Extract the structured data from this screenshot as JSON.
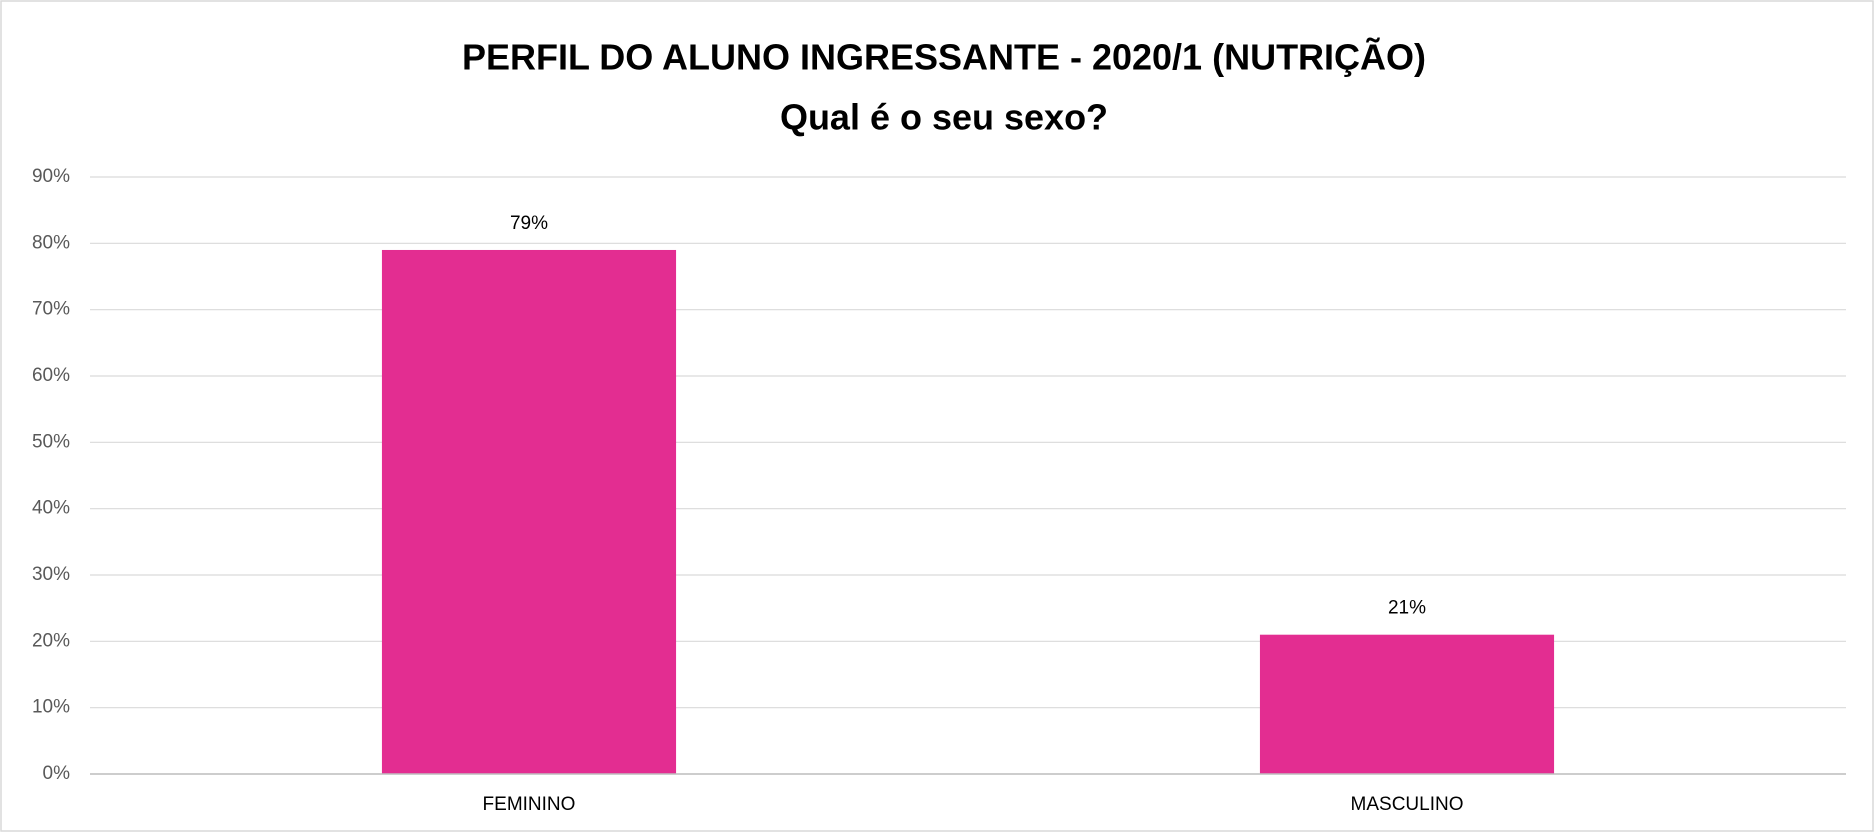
{
  "chart_data": {
    "type": "bar",
    "title": "PERFIL DO ALUNO INGRESSANTE - 2020/1 (NUTRIÇÃO)",
    "subtitle": "Qual é o seu sexo?",
    "categories": [
      "FEMININO",
      "MASCULINO"
    ],
    "values": [
      79,
      21
    ],
    "value_labels": [
      "79%",
      "21%"
    ],
    "color": "#e32d91",
    "ylim": [
      0,
      90
    ],
    "yticks": [
      {
        "value": 0,
        "label": "0%"
      },
      {
        "value": 10,
        "label": "10%"
      },
      {
        "value": 20,
        "label": "20%"
      },
      {
        "value": 30,
        "label": "30%"
      },
      {
        "value": 40,
        "label": "40%"
      },
      {
        "value": 50,
        "label": "50%"
      },
      {
        "value": 60,
        "label": "60%"
      },
      {
        "value": 70,
        "label": "70%"
      },
      {
        "value": 80,
        "label": "80%"
      },
      {
        "value": 90,
        "label": "90%"
      }
    ],
    "grid": true
  }
}
